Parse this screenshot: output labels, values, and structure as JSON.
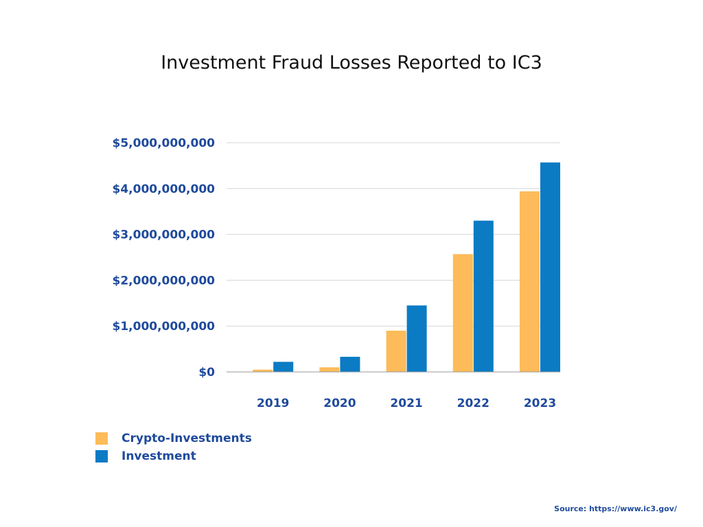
{
  "colors": {
    "crypto": "#fdbb5a",
    "investment": "#0b7bc4",
    "text_accent": "#1f4a9c",
    "grid": "#d6d6d6",
    "axis": "#999999"
  },
  "chart_data": {
    "type": "bar",
    "title": "Investment Fraud Losses Reported to IC3",
    "xlabel": "",
    "ylabel": "",
    "categories": [
      "2019",
      "2020",
      "2021",
      "2022",
      "2023"
    ],
    "series": [
      {
        "name": "Crypto-Investments",
        "values": [
          50000000,
          100000000,
          900000000,
          2570000000,
          3940000000
        ]
      },
      {
        "name": "Investment",
        "values": [
          220000000,
          330000000,
          1450000000,
          3300000000,
          4570000000
        ]
      }
    ],
    "ylim": [
      0,
      5000000000
    ],
    "yticks": [
      0,
      1000000000,
      2000000000,
      3000000000,
      4000000000,
      5000000000
    ],
    "ytick_labels": [
      "$0",
      "$1,000,000,000",
      "$2,000,000,000",
      "$3,000,000,000",
      "$4,000,000,000",
      "$5,000,000,000"
    ],
    "grid": true,
    "legend_position": "bottom-left"
  },
  "legend": {
    "items": [
      {
        "label": "Crypto-Investments"
      },
      {
        "label": "Investment"
      }
    ]
  },
  "source": "Source: https://www.ic3.gov/"
}
